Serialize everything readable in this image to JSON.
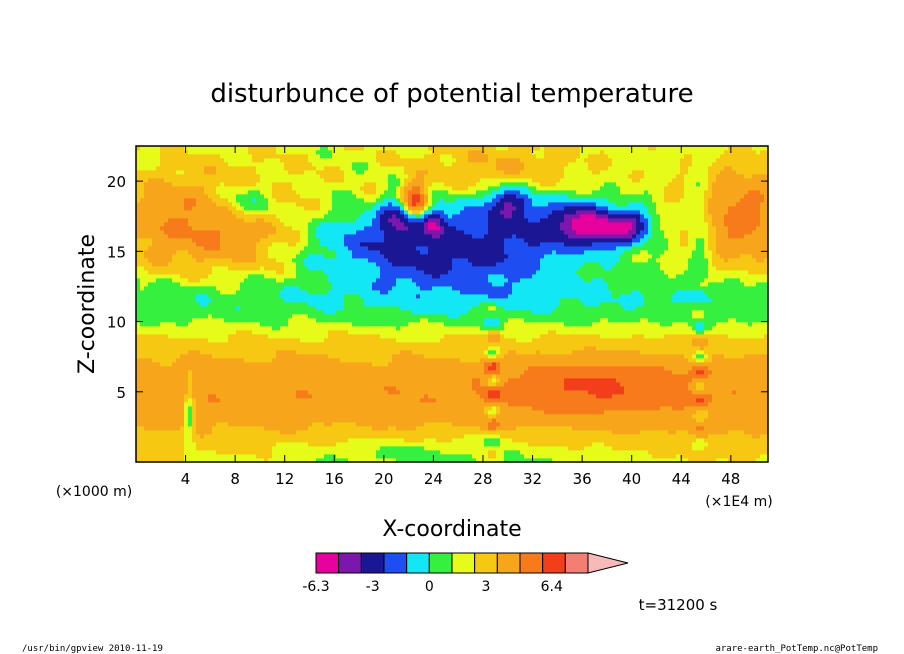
{
  "chart_data": {
    "type": "heatmap",
    "title": "disturbunce of potential temperature",
    "xlabel": "X-coordinate",
    "ylabel": "Z-coordinate",
    "x_unit_left": "(×1000 m)",
    "x_unit_right": "(×1E4 m)",
    "x_ticks": [
      "4",
      "8",
      "12",
      "16",
      "20",
      "24",
      "28",
      "32",
      "36",
      "40",
      "44",
      "48"
    ],
    "y_ticks": [
      "5",
      "10",
      "15",
      "20"
    ],
    "xlim": [
      0,
      51
    ],
    "ylim": [
      0,
      22.5
    ],
    "colorbar": {
      "colors": [
        "#e6009e",
        "#7c17ae",
        "#1b1693",
        "#1e4ef2",
        "#13e7f6",
        "#36f040",
        "#e6fb19",
        "#f7c813",
        "#f7a61c",
        "#f77a1b",
        "#f23e1a",
        "#f37e74",
        "#f8b9bb"
      ],
      "tick_labels": [
        "-6.3",
        "-3",
        "0",
        "3",
        "6.4"
      ]
    },
    "annotation": "t=31200 s"
  },
  "footer": {
    "left": "/usr/bin/gpview  2010-11-19",
    "right": "arare-earth_PotTemp.nc@PotTemp"
  }
}
